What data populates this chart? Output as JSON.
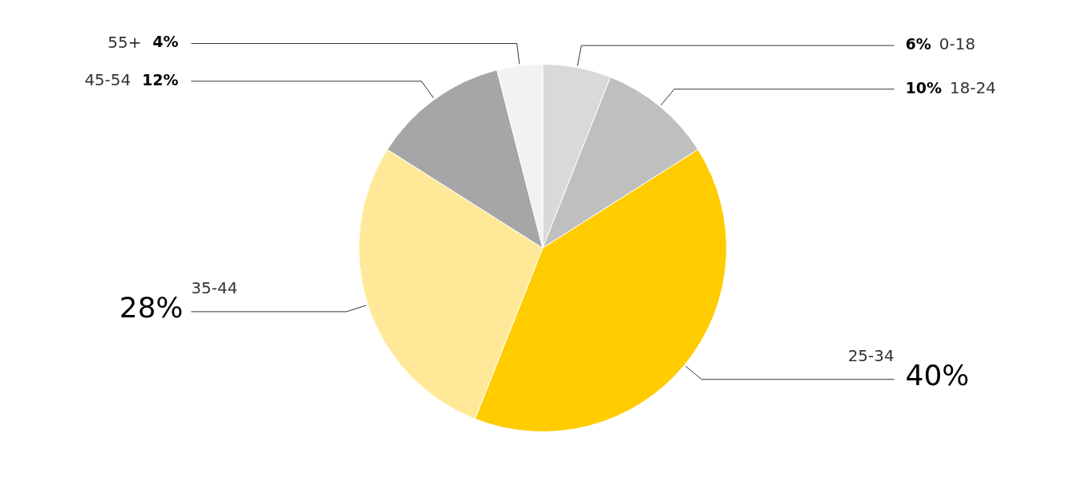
{
  "chart_data": {
    "type": "pie",
    "categories": [
      "0-18",
      "18-24",
      "25-34",
      "35-44",
      "45-54",
      "55+"
    ],
    "values": [
      6,
      10,
      40,
      28,
      12,
      4
    ],
    "colors": [
      "#d9d9d9",
      "#bfbfbf",
      "#ffcc00",
      "#ffe999",
      "#a6a6a6",
      "#f2f2f2"
    ],
    "value_labels": [
      "6%",
      "10%",
      "40%",
      "28%",
      "12%",
      "4%"
    ],
    "legend": false
  }
}
